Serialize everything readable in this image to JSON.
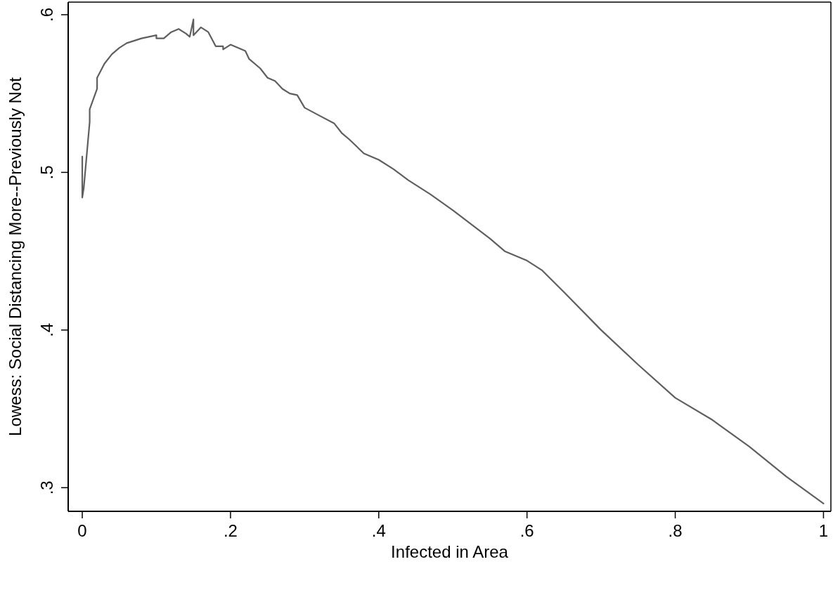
{
  "chart_data": {
    "type": "line",
    "xlabel": "Infected in Area",
    "ylabel": "Lowess: Social Distancing More--Previously Not",
    "xlim": [
      -0.019,
      1.01
    ],
    "ylim": [
      0.285,
      0.608
    ],
    "xticks": [
      {
        "value": 0,
        "label": "0"
      },
      {
        "value": 0.2,
        "label": ".2"
      },
      {
        "value": 0.4,
        "label": ".4"
      },
      {
        "value": 0.6,
        "label": ".6"
      },
      {
        "value": 0.8,
        "label": ".8"
      },
      {
        "value": 1,
        "label": "1"
      }
    ],
    "yticks": [
      {
        "value": 0.3,
        "label": ".3"
      },
      {
        "value": 0.4,
        "label": ".4"
      },
      {
        "value": 0.5,
        "label": ".5"
      },
      {
        "value": 0.6,
        "label": ".6"
      }
    ],
    "grid": false,
    "marker": "none",
    "line_style": "solid",
    "series": [
      {
        "color": "#5f5f5f",
        "x": [
          0,
          0,
          0.002,
          0.01,
          0.01,
          0.02,
          0.02,
          0.03,
          0.04,
          0.05,
          0.06,
          0.08,
          0.1,
          0.1,
          0.11,
          0.12,
          0.13,
          0.14,
          0.145,
          0.15,
          0.15,
          0.16,
          0.17,
          0.18,
          0.19,
          0.19,
          0.2,
          0.21,
          0.22,
          0.225,
          0.24,
          0.25,
          0.26,
          0.27,
          0.28,
          0.29,
          0.3,
          0.32,
          0.34,
          0.35,
          0.36,
          0.38,
          0.4,
          0.42,
          0.44,
          0.47,
          0.5,
          0.55,
          0.57,
          0.6,
          0.62,
          0.65,
          0.7,
          0.75,
          0.8,
          0.85,
          0.9,
          0.95,
          1
        ],
        "values": [
          0.51,
          0.484,
          0.49,
          0.532,
          0.54,
          0.553,
          0.56,
          0.569,
          0.575,
          0.579,
          0.582,
          0.585,
          0.587,
          0.585,
          0.585,
          0.589,
          0.591,
          0.588,
          0.586,
          0.597,
          0.587,
          0.592,
          0.589,
          0.58,
          0.58,
          0.578,
          0.581,
          0.579,
          0.577,
          0.572,
          0.566,
          0.56,
          0.558,
          0.553,
          0.55,
          0.549,
          0.541,
          0.536,
          0.531,
          0.525,
          0.521,
          0.512,
          0.508,
          0.502,
          0.495,
          0.486,
          0.476,
          0.458,
          0.45,
          0.444,
          0.438,
          0.424,
          0.4,
          0.378,
          0.357,
          0.343,
          0.326,
          0.307,
          0.29
        ]
      }
    ]
  }
}
